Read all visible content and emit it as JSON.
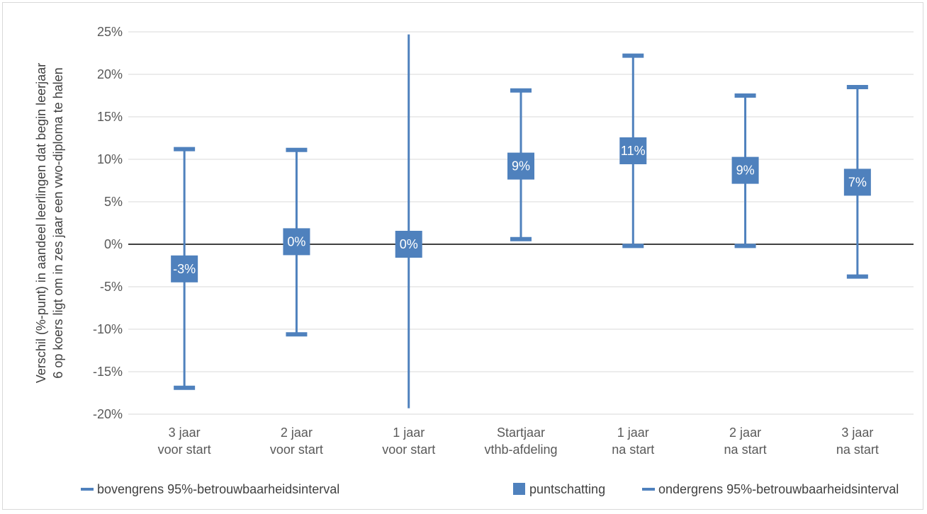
{
  "chart_data": {
    "type": "errorbar",
    "categories": [
      [
        "3 jaar",
        "voor start"
      ],
      [
        "2 jaar",
        "voor start"
      ],
      [
        "1 jaar",
        "voor start"
      ],
      [
        "Startjaar",
        "vthb-afdeling"
      ],
      [
        "1 jaar",
        "na start"
      ],
      [
        "2 jaar",
        "na start"
      ],
      [
        "3 jaar",
        "na start"
      ]
    ],
    "series": [
      {
        "name": "bovengrens 95%-betrouwbaarheidsinterval",
        "values": [
          11.2,
          11.1,
          null,
          18.1,
          22.2,
          17.5,
          18.5
        ]
      },
      {
        "name": "puntschatting",
        "values": [
          -2.9,
          0.3,
          0.0,
          9.2,
          11.0,
          8.7,
          7.3
        ]
      },
      {
        "name": "ondergrens 95%-betrouwbaarheidsinterval",
        "values": [
          -16.9,
          -10.6,
          null,
          0.6,
          -0.2,
          -0.2,
          -3.8
        ]
      }
    ],
    "whisker_extent": [
      [
        -16.9,
        11.2
      ],
      [
        -10.6,
        11.1
      ],
      [
        -19.3,
        24.7
      ],
      [
        0.6,
        18.1
      ],
      [
        -0.2,
        22.2
      ],
      [
        -0.2,
        17.5
      ],
      [
        -3.8,
        18.5
      ]
    ],
    "point_labels": [
      "-3%",
      "0%",
      "0%",
      "9%",
      "11%",
      "9%",
      "7%"
    ],
    "ylabel_lines": [
      "Verschil (%-punt) in aandeel leerlingen dat begin leerjaar",
      "6 op koers ligt om in zes jaar een vwo-diploma te halen"
    ],
    "yticks": [
      "-20%",
      "-15%",
      "-10%",
      "-5%",
      "0%",
      "5%",
      "10%",
      "15%",
      "20%",
      "25%"
    ],
    "ylim": [
      -20,
      25
    ],
    "grid": true,
    "legend_position": "bottom",
    "colors": {
      "series": "#4f81bd",
      "grid": "#d9d9d9",
      "zero_line": "#000000",
      "text": "#595959"
    }
  }
}
